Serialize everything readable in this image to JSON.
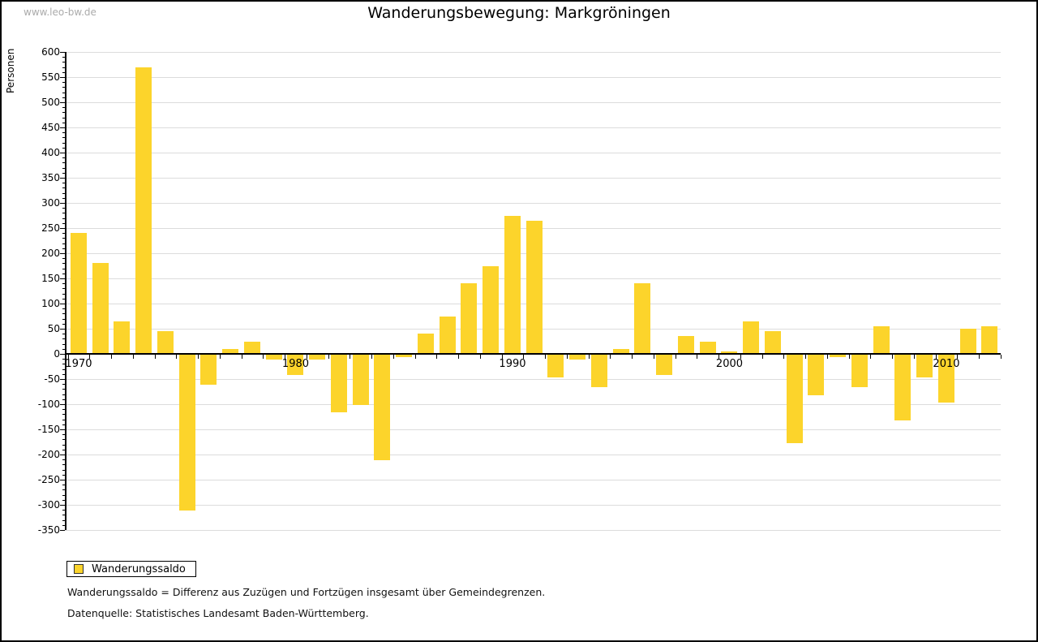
{
  "watermark": "www.leo-bw.de",
  "title": "Wanderungsbewegung: Markgröningen",
  "legend": {
    "label": "Wanderungssaldo"
  },
  "captions": {
    "definition": "Wanderungssaldo = Differenz aus Zuzügen und Fortzügen insgesamt über Gemeindegrenzen.",
    "source": "Datenquelle: Statistisches Landesamt Baden-Württemberg."
  },
  "colors": {
    "bar": "#fcd42b",
    "grid": "#dcdcdc",
    "axis": "#000000",
    "watermark": "#ababab"
  },
  "chart_data": {
    "type": "bar",
    "title": "Wanderungsbewegung: Markgröningen",
    "xlabel": "",
    "ylabel": "Personen",
    "ylim": [
      -350,
      600
    ],
    "ytick_step": 50,
    "y_minor_step": 10,
    "grid": true,
    "legend_position": "bottom-left",
    "series_name": "Wanderungssaldo",
    "xticks_labeled": [
      1970,
      1980,
      1990,
      2000,
      2010
    ],
    "years": [
      1970,
      1971,
      1972,
      1973,
      1974,
      1975,
      1976,
      1977,
      1978,
      1979,
      1980,
      1981,
      1982,
      1983,
      1984,
      1985,
      1986,
      1987,
      1988,
      1989,
      1990,
      1991,
      1992,
      1993,
      1994,
      1995,
      1996,
      1997,
      1998,
      1999,
      2000,
      2001,
      2002,
      2003,
      2004,
      2005,
      2006,
      2007,
      2008,
      2009,
      2010,
      2011,
      2012
    ],
    "values": [
      240,
      180,
      65,
      570,
      45,
      -310,
      -60,
      10,
      25,
      -10,
      -40,
      -10,
      -115,
      -100,
      -210,
      -5,
      40,
      75,
      140,
      175,
      275,
      265,
      -45,
      -10,
      -65,
      10,
      140,
      -40,
      35,
      25,
      5,
      65,
      45,
      -175,
      -80,
      -5,
      -65,
      55,
      -130,
      -45,
      -95,
      50,
      55
    ]
  }
}
